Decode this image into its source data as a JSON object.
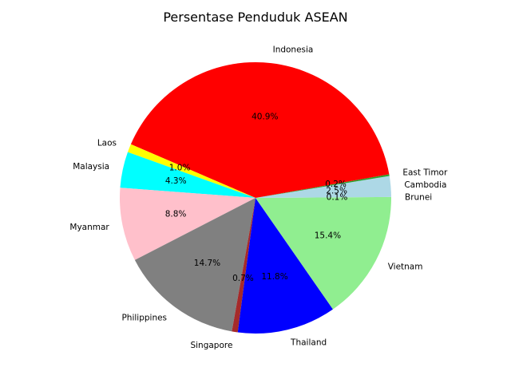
{
  "chart_data": {
    "type": "pie",
    "title": "Persentase Penduduk ASEAN",
    "startangle_deg": 0,
    "counterclockwise": true,
    "autopct_format": "1 decimal place with %",
    "slices": [
      {
        "label": "Brunei",
        "percent": 0.1,
        "pct_text": "0.1%",
        "color": "#90ee90"
      },
      {
        "label": "Cambodia",
        "percent": 2.5,
        "pct_text": "2.5%",
        "color": "#add8e6"
      },
      {
        "label": "East Timor",
        "percent": 0.2,
        "pct_text": "0.2%",
        "color": "#2ca02c"
      },
      {
        "label": "Indonesia",
        "percent": 40.9,
        "pct_text": "40.9%",
        "color": "#ff0000"
      },
      {
        "label": "Laos",
        "percent": 1.0,
        "pct_text": "1.0%",
        "color": "#ffff00"
      },
      {
        "label": "Malaysia",
        "percent": 4.3,
        "pct_text": "4.3%",
        "color": "#00ffff"
      },
      {
        "label": "Myanmar",
        "percent": 8.8,
        "pct_text": "8.8%",
        "color": "#ffc0cb"
      },
      {
        "label": "Philippines",
        "percent": 14.7,
        "pct_text": "14.7%",
        "color": "#808080"
      },
      {
        "label": "Singapore",
        "percent": 0.7,
        "pct_text": "0.7%",
        "color": "#a52a2a"
      },
      {
        "label": "Thailand",
        "percent": 11.8,
        "pct_text": "11.8%",
        "color": "#0000ff"
      },
      {
        "label": "Vietnam",
        "percent": 15.4,
        "pct_text": "15.4%",
        "color": "#90ee90"
      }
    ]
  }
}
